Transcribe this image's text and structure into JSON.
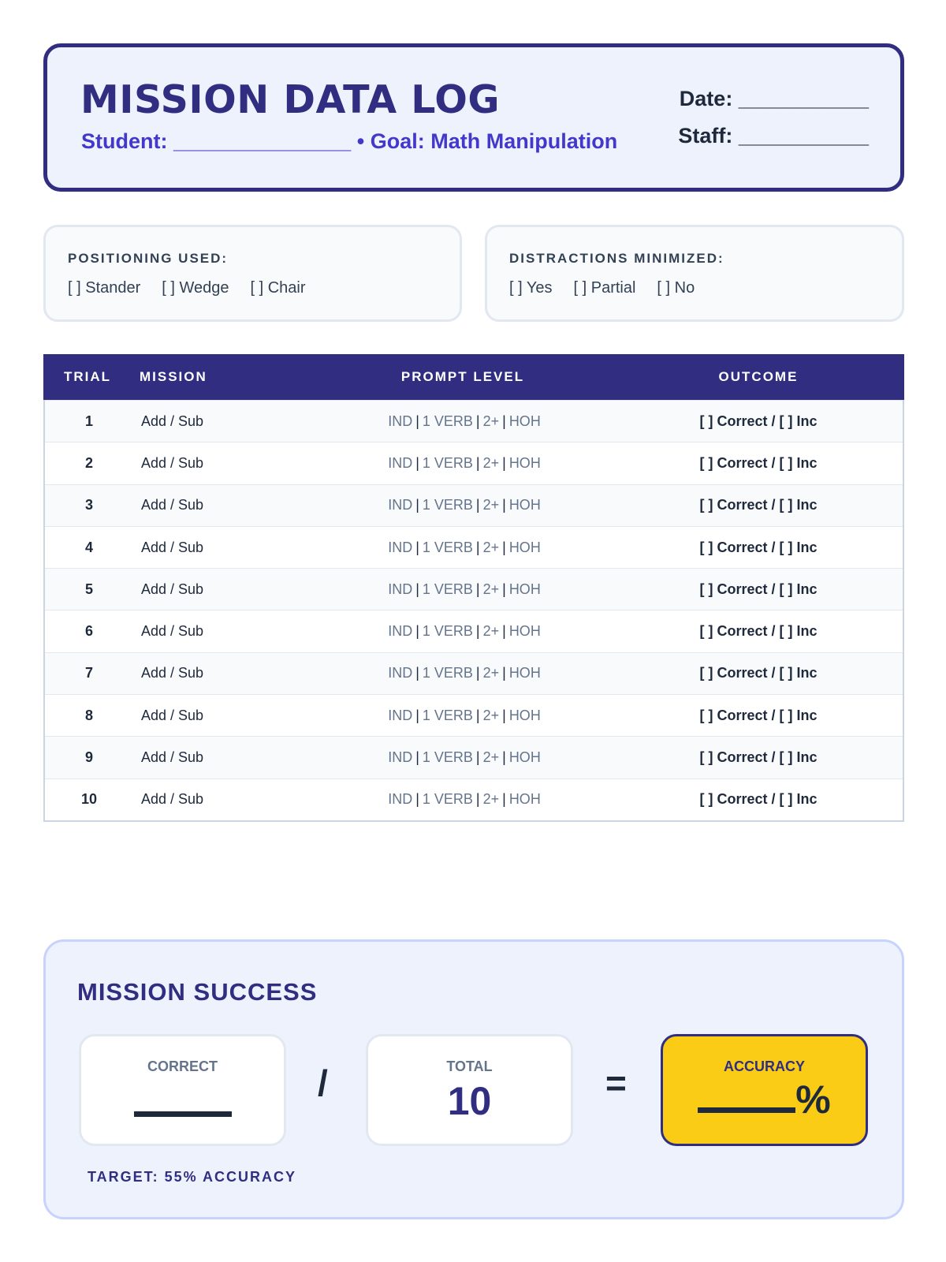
{
  "header": {
    "title": "MISSION DATA LOG",
    "student_label": "Student: _______________",
    "goal": "• Goal: Math Manipulation",
    "date_label": "Date: ___________",
    "staff_label": "Staff: ___________"
  },
  "positioning": {
    "label": "POSITIONING USED:",
    "options": [
      "[ ] Stander",
      "[ ] Wedge",
      "[ ] Chair"
    ]
  },
  "distractions": {
    "label": "DISTRACTIONS MINIMIZED:",
    "options": [
      "[ ] Yes",
      "[ ] Partial",
      "[ ] No"
    ]
  },
  "table": {
    "headers": [
      "TRIAL",
      "MISSION",
      "PROMPT LEVEL",
      "OUTCOME"
    ],
    "prompt_levels": [
      "IND",
      "1 VERB",
      "2+",
      "HOH"
    ],
    "rows": [
      {
        "trial": "1",
        "mission": "Add / Sub",
        "outcome": "[ ] Correct / [ ] Inc"
      },
      {
        "trial": "2",
        "mission": "Add / Sub",
        "outcome": "[ ] Correct / [ ] Inc"
      },
      {
        "trial": "3",
        "mission": "Add / Sub",
        "outcome": "[ ] Correct / [ ] Inc"
      },
      {
        "trial": "4",
        "mission": "Add / Sub",
        "outcome": "[ ] Correct / [ ] Inc"
      },
      {
        "trial": "5",
        "mission": "Add / Sub",
        "outcome": "[ ] Correct / [ ] Inc"
      },
      {
        "trial": "6",
        "mission": "Add / Sub",
        "outcome": "[ ] Correct / [ ] Inc"
      },
      {
        "trial": "7",
        "mission": "Add / Sub",
        "outcome": "[ ] Correct / [ ] Inc"
      },
      {
        "trial": "8",
        "mission": "Add / Sub",
        "outcome": "[ ] Correct / [ ] Inc"
      },
      {
        "trial": "9",
        "mission": "Add / Sub",
        "outcome": "[ ] Correct / [ ] Inc"
      },
      {
        "trial": "10",
        "mission": "Add / Sub",
        "outcome": "[ ] Correct / [ ] Inc"
      }
    ]
  },
  "summary": {
    "title": "MISSION SUCCESS",
    "correct_label": "CORRECT",
    "divide": "/",
    "total_label": "TOTAL",
    "total_value": "10",
    "equals": "=",
    "accuracy_label": "ACCURACY",
    "percent": "%",
    "target": "TARGET: 55% ACCURACY"
  },
  "colors": {
    "primary": "#312e81",
    "accent": "#4338ca",
    "highlight": "#facc15"
  }
}
